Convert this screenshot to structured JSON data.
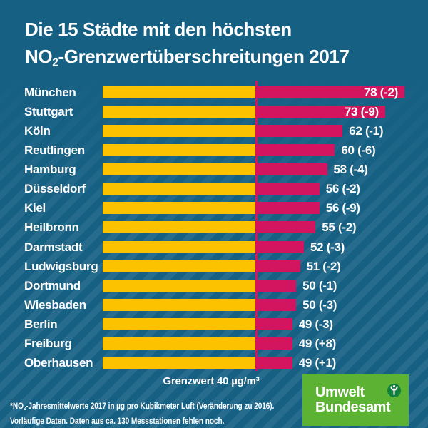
{
  "title": {
    "line1": "Die 15 Städte mit den höchsten",
    "line2_prefix": "NO",
    "line2_sub": "2",
    "line2_suffix": "-Grenzwertüberschreitungen 2017"
  },
  "chart_data": {
    "type": "bar",
    "orientation": "horizontal",
    "title": "Die 15 Städte mit den höchsten NO₂-Grenzwertüberschreitungen 2017",
    "unit": "µg/m³",
    "xlim": [
      0,
      78
    ],
    "grid": false,
    "legend": "none",
    "threshold": {
      "value": 40,
      "label": "Grenzwert 40 µg/m³"
    },
    "categories": [
      "München",
      "Stuttgart",
      "Köln",
      "Reutlingen",
      "Hamburg",
      "Düsseldorf",
      "Kiel",
      "Heilbronn",
      "Darmstadt",
      "Ludwigsburg",
      "Dortmund",
      "Wiesbaden",
      "Berlin",
      "Freiburg",
      "Oberhausen"
    ],
    "values": [
      78,
      73,
      62,
      60,
      58,
      56,
      56,
      55,
      52,
      51,
      50,
      50,
      49,
      49,
      49
    ],
    "changes_vs_2016": [
      -2,
      -9,
      -1,
      -6,
      -4,
      -2,
      -9,
      -2,
      -3,
      -2,
      -1,
      -3,
      -3,
      8,
      1
    ],
    "value_labels": [
      "78 (-2)",
      "73 (-9)",
      "62 (-1)",
      "60 (-6)",
      "58 (-4)",
      "56 (-2)",
      "56 (-9)",
      "55 (-2)",
      "52 (-3)",
      "51 (-2)",
      "50 (-1)",
      "50 (-3)",
      "49 (-3)",
      "49 (+8)",
      "49 (+1)"
    ],
    "label_inside": [
      true,
      true,
      false,
      false,
      false,
      false,
      false,
      false,
      false,
      false,
      false,
      false,
      false,
      false,
      false
    ]
  },
  "footnote": {
    "line1_prefix": "*NO",
    "line1_sub": "2",
    "line1_suffix": "-Jahresmittelwerte 2017 in µg pro Kubikmeter Luft (Veränderung zu 2016).",
    "line2": "Vorläufige Daten. Daten aus ca. 130 Messstationen fehlen noch."
  },
  "logo": {
    "line1": "Umwelt",
    "line2": "Bundesamt",
    "icon": "uba-person-tree-icon"
  },
  "colors": {
    "background": "#166084",
    "stripe": "rgba(255,255,255,0.075)",
    "bar_limit_yellow": "#fcc200",
    "bar_exceed_magenta": "#d2155e",
    "threshold_line": "#d2155e",
    "logo_green": "#5cb233",
    "logo_icon_green": "#12813c",
    "text": "#ffffff"
  }
}
